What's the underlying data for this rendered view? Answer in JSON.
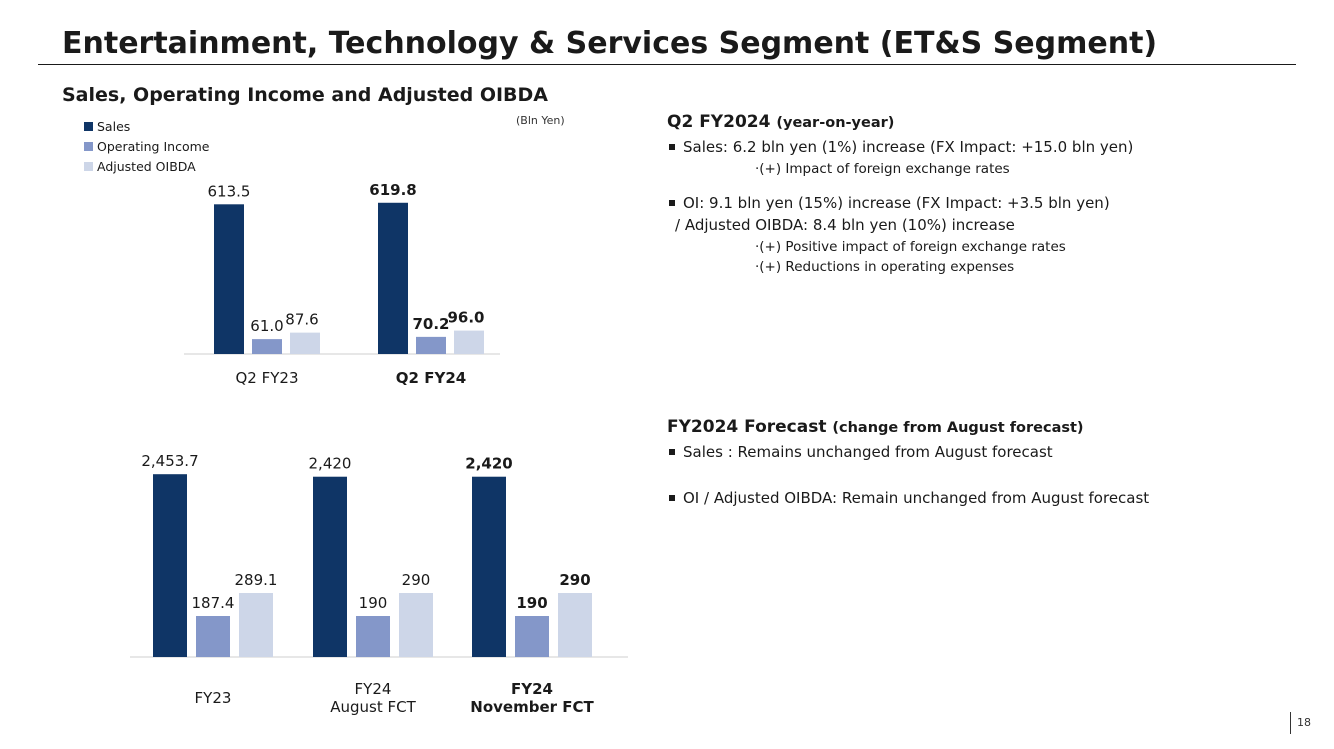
{
  "title": "Entertainment, Technology & Services Segment (ET&S Segment)",
  "subtitle": "Sales, Operating Income and Adjusted OIBDA",
  "unit": "(Bln Yen)",
  "page_number": "18",
  "colors": {
    "sales": "#0f3566",
    "operating_income": "#8497c9",
    "adjusted_oibda": "#cdd6e8"
  },
  "chart_data": [
    {
      "type": "bar",
      "title": "Sales, Operating Income and Adjusted OIBDA",
      "ylabel": "(Bln Yen)",
      "legend": [
        "Sales",
        "Operating Income",
        "Adjusted OIBDA"
      ],
      "categories": [
        {
          "lines": [
            "Q2 FY23"
          ],
          "bold": false
        },
        {
          "lines": [
            "Q2 FY24"
          ],
          "bold": true
        }
      ],
      "series": [
        {
          "name": "Sales",
          "values": [
            613.5,
            619.8
          ],
          "labels": [
            "613.5",
            "619.8"
          ]
        },
        {
          "name": "Operating Income",
          "values": [
            61.0,
            70.2
          ],
          "labels": [
            "61.0",
            "70.2"
          ]
        },
        {
          "name": "Adjusted OIBDA",
          "values": [
            87.6,
            96.0
          ],
          "labels": [
            "87.6",
            "96.0"
          ]
        }
      ]
    },
    {
      "type": "bar",
      "legend": [
        "Sales",
        "Operating Income",
        "Adjusted OIBDA"
      ],
      "categories": [
        {
          "lines": [
            "FY23"
          ],
          "bold": false
        },
        {
          "lines": [
            "FY24",
            "August FCT"
          ],
          "bold": false
        },
        {
          "lines": [
            "FY24",
            "November FCT"
          ],
          "bold": true
        }
      ],
      "series": [
        {
          "name": "Sales",
          "values": [
            2453.7,
            2420,
            2420
          ],
          "labels": [
            "2,453.7",
            "2,420",
            "2,420"
          ]
        },
        {
          "name": "Operating Income",
          "values": [
            187.4,
            190,
            190
          ],
          "labels": [
            "187.4",
            "190",
            "190"
          ]
        },
        {
          "name": "Adjusted OIBDA",
          "values": [
            289.1,
            290,
            290
          ],
          "labels": [
            "289.1",
            "290",
            "290"
          ]
        }
      ]
    }
  ],
  "q2": {
    "head": "Q2 FY2024",
    "head_note": "(year-on-year)",
    "sales": "Sales: 6.2 bln yen (1%) increase (FX Impact: +15.0 bln yen)",
    "sales_sub1": "·(+) Impact of foreign exchange rates",
    "oi": "OI: 9.1 bln yen (15%) increase (FX Impact: +3.5 bln yen)",
    "oi_cont": "/ Adjusted OIBDA: 8.4 bln yen (10%) increase",
    "oi_sub1": "·(+) Positive impact of foreign exchange rates",
    "oi_sub2": "·(+) Reductions in operating expenses"
  },
  "forecast": {
    "head": "FY2024 Forecast",
    "head_note": "(change from August forecast)",
    "sales": "Sales : Remains unchanged from August forecast",
    "oi": "OI / Adjusted OIBDA: Remain unchanged from August forecast"
  }
}
